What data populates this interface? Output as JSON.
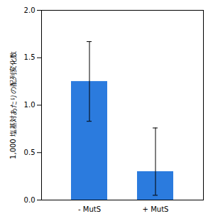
{
  "chart_data": {
    "type": "bar",
    "categories": [
      "- MutS",
      "+ MutS"
    ],
    "values": [
      1.25,
      0.3
    ],
    "errors_upper": [
      0.42,
      0.46
    ],
    "errors_lower": [
      0.42,
      0.25
    ],
    "color": "#2b7bde",
    "ylabel": "1,000 塩基対あたりの配列変化数",
    "ylim": [
      0,
      2
    ],
    "yticks": [
      {
        "value": 0,
        "label": "0.0"
      },
      0.5,
      {
        "value": 1.0,
        "label": "1.0"
      },
      1.5,
      {
        "value": 2.0,
        "label": "2.0"
      }
    ],
    "grid": false
  }
}
